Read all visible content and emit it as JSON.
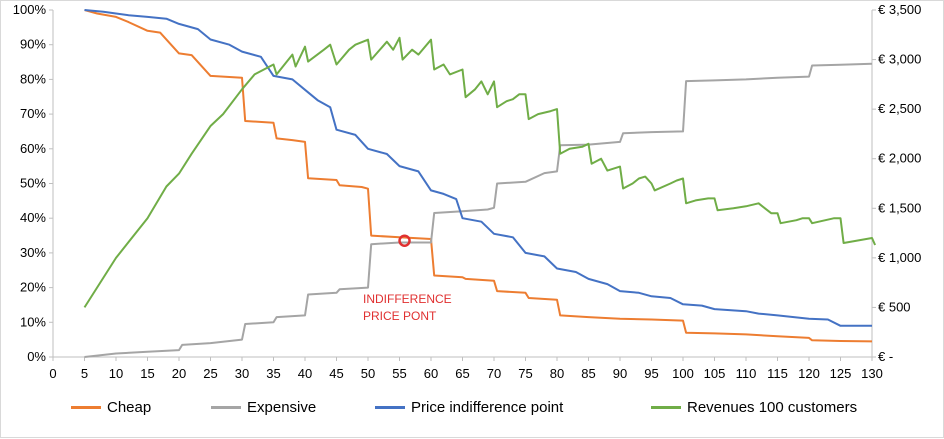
{
  "chart_data": {
    "type": "line",
    "x_ticks": [
      0,
      5,
      10,
      15,
      20,
      25,
      30,
      35,
      40,
      45,
      50,
      55,
      60,
      65,
      70,
      75,
      80,
      85,
      90,
      95,
      100,
      105,
      110,
      115,
      120,
      125,
      130
    ],
    "left_axis": {
      "ticks": [
        "0%",
        "10%",
        "20%",
        "30%",
        "40%",
        "50%",
        "60%",
        "70%",
        "80%",
        "90%",
        "100%"
      ],
      "range": [
        0,
        1
      ]
    },
    "right_axis": {
      "ticks": [
        "€ -",
        "€ 500",
        "€ 1,000",
        "€ 1,500",
        "€ 2,000",
        "€ 2,500",
        "€ 3,000",
        "€ 3,500"
      ],
      "range": [
        0,
        3500
      ]
    },
    "series": [
      {
        "name": "Cheap",
        "axis": "left",
        "color": "#ed7d31",
        "points": [
          [
            5,
            1.0
          ],
          [
            7,
            0.99
          ],
          [
            10,
            0.98
          ],
          [
            12,
            0.965
          ],
          [
            15,
            0.94
          ],
          [
            17,
            0.935
          ],
          [
            20,
            0.875
          ],
          [
            22,
            0.87
          ],
          [
            25,
            0.81
          ],
          [
            30,
            0.805
          ],
          [
            30.5,
            0.68
          ],
          [
            35,
            0.675
          ],
          [
            35.5,
            0.63
          ],
          [
            38,
            0.625
          ],
          [
            40,
            0.62
          ],
          [
            40.5,
            0.515
          ],
          [
            45,
            0.51
          ],
          [
            45.5,
            0.495
          ],
          [
            49,
            0.49
          ],
          [
            50,
            0.485
          ],
          [
            50.5,
            0.35
          ],
          [
            55,
            0.345
          ],
          [
            60,
            0.34
          ],
          [
            60.5,
            0.235
          ],
          [
            65,
            0.23
          ],
          [
            65.5,
            0.225
          ],
          [
            70,
            0.22
          ],
          [
            70.5,
            0.19
          ],
          [
            75,
            0.185
          ],
          [
            75.5,
            0.17
          ],
          [
            80,
            0.165
          ],
          [
            80.5,
            0.12
          ],
          [
            85,
            0.115
          ],
          [
            90,
            0.11
          ],
          [
            95,
            0.108
          ],
          [
            100,
            0.105
          ],
          [
            100.5,
            0.07
          ],
          [
            105,
            0.068
          ],
          [
            110,
            0.065
          ],
          [
            115,
            0.06
          ],
          [
            120,
            0.055
          ],
          [
            120.5,
            0.048
          ],
          [
            125,
            0.046
          ],
          [
            130,
            0.045
          ]
        ]
      },
      {
        "name": "Expensive",
        "axis": "left",
        "color": "#a5a5a5",
        "points": [
          [
            5,
            0.0
          ],
          [
            10,
            0.01
          ],
          [
            15,
            0.015
          ],
          [
            20,
            0.02
          ],
          [
            20.5,
            0.035
          ],
          [
            25,
            0.04
          ],
          [
            30,
            0.05
          ],
          [
            30.5,
            0.095
          ],
          [
            35,
            0.1
          ],
          [
            35.5,
            0.115
          ],
          [
            40,
            0.12
          ],
          [
            40.5,
            0.18
          ],
          [
            45,
            0.185
          ],
          [
            45.5,
            0.195
          ],
          [
            50,
            0.2
          ],
          [
            50.5,
            0.325
          ],
          [
            55,
            0.33
          ],
          [
            60,
            0.33
          ],
          [
            60.5,
            0.415
          ],
          [
            65,
            0.42
          ],
          [
            69,
            0.425
          ],
          [
            70,
            0.43
          ],
          [
            70.5,
            0.5
          ],
          [
            75,
            0.505
          ],
          [
            78,
            0.53
          ],
          [
            80,
            0.535
          ],
          [
            80.5,
            0.61
          ],
          [
            85,
            0.612
          ],
          [
            90,
            0.62
          ],
          [
            90.5,
            0.645
          ],
          [
            95,
            0.648
          ],
          [
            100,
            0.65
          ],
          [
            100.5,
            0.795
          ],
          [
            105,
            0.797
          ],
          [
            110,
            0.8
          ],
          [
            115,
            0.805
          ],
          [
            120,
            0.808
          ],
          [
            120.5,
            0.84
          ],
          [
            125,
            0.842
          ],
          [
            130,
            0.845
          ]
        ]
      },
      {
        "name": "Price indifference point",
        "axis": "left",
        "color": "#4472c4",
        "points": [
          [
            5,
            1.0
          ],
          [
            8,
            0.995
          ],
          [
            10,
            0.99
          ],
          [
            12,
            0.985
          ],
          [
            15,
            0.98
          ],
          [
            18,
            0.975
          ],
          [
            20,
            0.96
          ],
          [
            23,
            0.945
          ],
          [
            25,
            0.915
          ],
          [
            28,
            0.9
          ],
          [
            30,
            0.88
          ],
          [
            33,
            0.865
          ],
          [
            35,
            0.81
          ],
          [
            38,
            0.8
          ],
          [
            40,
            0.77
          ],
          [
            42,
            0.74
          ],
          [
            44,
            0.72
          ],
          [
            45,
            0.655
          ],
          [
            48,
            0.64
          ],
          [
            50,
            0.6
          ],
          [
            53,
            0.585
          ],
          [
            55,
            0.55
          ],
          [
            58,
            0.535
          ],
          [
            60,
            0.48
          ],
          [
            62,
            0.47
          ],
          [
            64,
            0.455
          ],
          [
            65,
            0.4
          ],
          [
            68,
            0.39
          ],
          [
            70,
            0.355
          ],
          [
            73,
            0.345
          ],
          [
            75,
            0.3
          ],
          [
            78,
            0.29
          ],
          [
            80,
            0.255
          ],
          [
            83,
            0.245
          ],
          [
            85,
            0.225
          ],
          [
            88,
            0.21
          ],
          [
            90,
            0.19
          ],
          [
            93,
            0.185
          ],
          [
            95,
            0.175
          ],
          [
            98,
            0.17
          ],
          [
            100,
            0.152
          ],
          [
            103,
            0.148
          ],
          [
            105,
            0.138
          ],
          [
            110,
            0.132
          ],
          [
            112,
            0.125
          ],
          [
            115,
            0.12
          ],
          [
            120,
            0.11
          ],
          [
            123,
            0.108
          ],
          [
            125,
            0.09
          ],
          [
            130,
            0.09
          ]
        ]
      },
      {
        "name": "Revenues 100 customers",
        "axis": "right",
        "color": "#70ad47",
        "points": [
          [
            5,
            500
          ],
          [
            10,
            1000
          ],
          [
            15,
            1400
          ],
          [
            18,
            1720
          ],
          [
            20,
            1850
          ],
          [
            22,
            2050
          ],
          [
            25,
            2330
          ],
          [
            27,
            2450
          ],
          [
            30,
            2700
          ],
          [
            32,
            2850
          ],
          [
            35,
            2950
          ],
          [
            35.5,
            2850
          ],
          [
            38,
            3050
          ],
          [
            38.5,
            2930
          ],
          [
            40,
            3130
          ],
          [
            40.5,
            2980
          ],
          [
            43,
            3100
          ],
          [
            44,
            3150
          ],
          [
            45,
            2950
          ],
          [
            47,
            3100
          ],
          [
            48,
            3150
          ],
          [
            50,
            3200
          ],
          [
            50.5,
            3000
          ],
          [
            53,
            3180
          ],
          [
            54,
            3100
          ],
          [
            55,
            3220
          ],
          [
            55.5,
            3000
          ],
          [
            57,
            3100
          ],
          [
            58,
            3050
          ],
          [
            60,
            3200
          ],
          [
            60.5,
            2900
          ],
          [
            62,
            2950
          ],
          [
            63,
            2850
          ],
          [
            65,
            2900
          ],
          [
            65.5,
            2620
          ],
          [
            67,
            2700
          ],
          [
            68,
            2780
          ],
          [
            69,
            2650
          ],
          [
            70,
            2780
          ],
          [
            70.5,
            2520
          ],
          [
            72,
            2580
          ],
          [
            73,
            2600
          ],
          [
            74,
            2650
          ],
          [
            75,
            2650
          ],
          [
            75.5,
            2400
          ],
          [
            77,
            2450
          ],
          [
            79,
            2480
          ],
          [
            80,
            2500
          ],
          [
            80.5,
            2050
          ],
          [
            82,
            2100
          ],
          [
            84,
            2120
          ],
          [
            85,
            2150
          ],
          [
            85.5,
            1950
          ],
          [
            87,
            2000
          ],
          [
            88,
            1880
          ],
          [
            89,
            1900
          ],
          [
            90,
            1920
          ],
          [
            90.5,
            1700
          ],
          [
            92,
            1750
          ],
          [
            93,
            1800
          ],
          [
            94,
            1820
          ],
          [
            95,
            1750
          ],
          [
            95.5,
            1680
          ],
          [
            98,
            1750
          ],
          [
            99,
            1780
          ],
          [
            100,
            1800
          ],
          [
            100.5,
            1550
          ],
          [
            102,
            1580
          ],
          [
            104,
            1600
          ],
          [
            105,
            1600
          ],
          [
            105.5,
            1480
          ],
          [
            108,
            1500
          ],
          [
            110,
            1520
          ],
          [
            112,
            1550
          ],
          [
            113,
            1500
          ],
          [
            114,
            1450
          ],
          [
            115,
            1450
          ],
          [
            115.5,
            1350
          ],
          [
            118,
            1380
          ],
          [
            119,
            1400
          ],
          [
            120,
            1400
          ],
          [
            120.5,
            1350
          ],
          [
            124,
            1400
          ],
          [
            125,
            1400
          ],
          [
            125.5,
            1150
          ],
          [
            130,
            1200
          ],
          [
            130.5,
            1130
          ]
        ]
      }
    ],
    "annotations": [
      {
        "text_lines": [
          "INDIFFERENCE",
          "PRICE PONT"
        ],
        "color": "#e03030",
        "marker": {
          "x": 55.8,
          "y": 0.335
        }
      }
    ],
    "legend_placement": "bottom",
    "grid": false
  }
}
